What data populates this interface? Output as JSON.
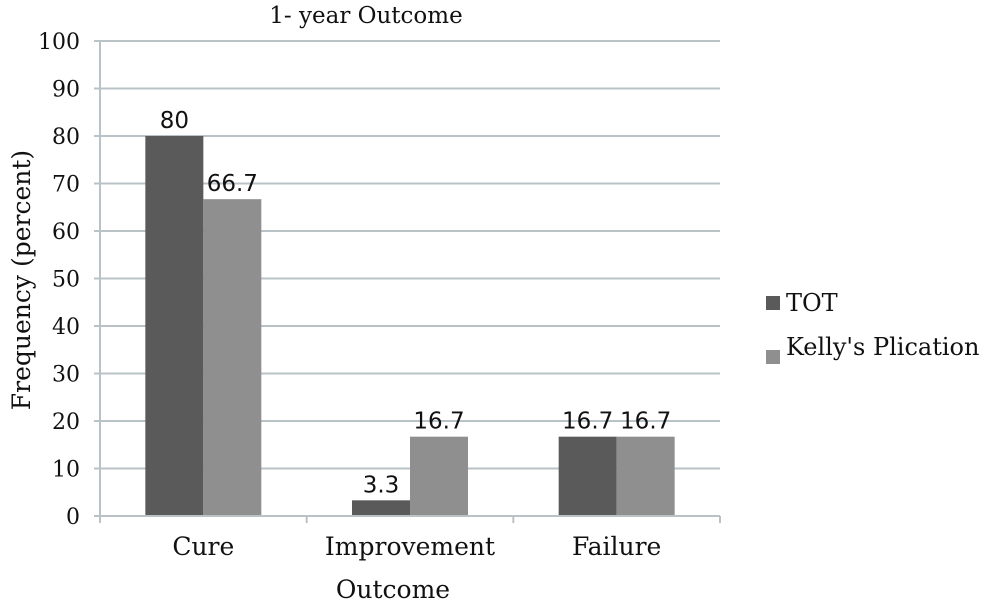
{
  "chart_data": {
    "type": "bar",
    "title": "1- year Outcome",
    "xlabel": "Outcome",
    "ylabel": "Frequency (percent)",
    "categories": [
      "Cure",
      "Improvement",
      "Failure"
    ],
    "series": [
      {
        "name": "TOT",
        "values": [
          80,
          3.3,
          16.7
        ],
        "color": "#5a5a5a"
      },
      {
        "name": "Kelly's Plication",
        "values": [
          66.7,
          16.7,
          16.7
        ],
        "color": "#8f8f8f"
      }
    ],
    "data_labels": [
      [
        "80",
        "3.3",
        "16.7"
      ],
      [
        "66.7",
        "16.7",
        "16.7"
      ]
    ],
    "ylim": [
      0,
      100
    ],
    "yticks": [
      0,
      10,
      20,
      30,
      40,
      50,
      60,
      70,
      80,
      90,
      100
    ],
    "grid": true,
    "legend_position": "right"
  }
}
